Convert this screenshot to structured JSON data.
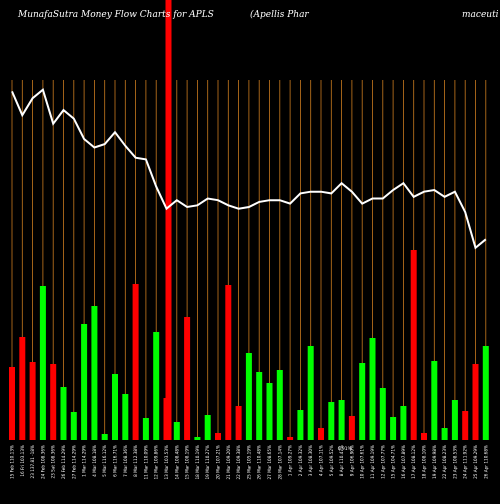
{
  "header": {
    "left": "MunafaSutra  Money Flow  Charts for APLS",
    "middle": "(Apellis Phar",
    "right": "maceuti"
  },
  "colors": {
    "background": "#000000",
    "grid": "#c87a1e",
    "up": "#00ff00",
    "down": "#ff0000",
    "line": "#ffffff",
    "label": "#ffffff"
  },
  "chart_data": {
    "type": "bar",
    "grid": "vertical",
    "categories": [
      "15 Feb 110.13%",
      "16 Fri 103.13%",
      "23 137.81 -18%",
      "24 Feb 108.36%",
      "23 Sat 108.36%",
      "26 Feb 114.29%",
      "27 Feb 114.29%",
      "1 Mar 114.29%",
      "4 Mar 108.18%",
      "5 Mar 116.12%",
      "6 Mar 116.71%",
      "7 Mar 108.36%",
      "8 Mar 112.38%",
      "11 Mar 110.09%",
      "12 Mar 109.86%",
      "13 Mar 103.53%",
      "14 Mar 108.48%",
      "15 Mar 108.19%",
      "18 Mar 110.19%",
      "19 Mar 110.27%",
      "20 Mar 107.21%",
      "21 Mar 109.20%",
      "22 Mar 109.38%",
      "25 Mar 105.19%",
      "26 Mar 110.48%",
      "27 Mar 108.65%",
      "28 Mar 107.14%",
      "1 Apr 109.27%",
      "2 Apr 109.32%",
      "3 Apr 108.30%",
      "4 Apr 107.11%",
      "5 Apr 109.52%",
      "8 Apr 110.47%",
      "9 Apr 106.90%",
      "10 Apr 107.61%",
      "11 Apr 109.19%",
      "12 Apr 107.77%",
      "15 Apr 104.71%",
      "16 Apr 107.89%",
      "17 Apr 108.12%",
      "18 Apr 108.10%",
      "19 Apr 109.98%",
      "22 Apr 108.23%",
      "23 Apr 108.53%",
      "24 Apr 111.92%",
      "25 Apr 109.29%",
      "26 Apr 110.68%"
    ],
    "annotations": [
      "6.91%"
    ],
    "bars": {
      "colors": [
        "down",
        "down",
        "down",
        "up",
        "down",
        "up",
        "up",
        "up",
        "up",
        "up",
        "up",
        "up",
        "down",
        "up",
        "up",
        "down",
        "up",
        "down",
        "up",
        "up",
        "down",
        "down",
        "down",
        "up",
        "up",
        "up",
        "up",
        "down",
        "up",
        "up",
        "down",
        "up",
        "up",
        "down",
        "up",
        "up",
        "up",
        "up",
        "up",
        "down",
        "down",
        "up",
        "up",
        "up",
        "down",
        "down",
        "up"
      ],
      "values": [
        73,
        103,
        78,
        154,
        76,
        53,
        28,
        116,
        134,
        6,
        66,
        46,
        156,
        22,
        108,
        42,
        18,
        123,
        3,
        25,
        7,
        155,
        34,
        87,
        68,
        57,
        70,
        3,
        30,
        94,
        12,
        38,
        40,
        24,
        77,
        102,
        52,
        23,
        34,
        190,
        7,
        79,
        12,
        40,
        29,
        76,
        94
      ]
    },
    "line": {
      "name": "Money Flow",
      "values": [
        138,
        124,
        134,
        139,
        119,
        127,
        122,
        110,
        105,
        107,
        114,
        106,
        99,
        98,
        82,
        69,
        74,
        70,
        71,
        75,
        74,
        71,
        69,
        70,
        73,
        74,
        74,
        72,
        78,
        79,
        79,
        78,
        84,
        79,
        72,
        75,
        75,
        80,
        84,
        76,
        79,
        80,
        76,
        79,
        67,
        46,
        51
      ],
      "ymin": 40,
      "ymax": 140
    }
  }
}
